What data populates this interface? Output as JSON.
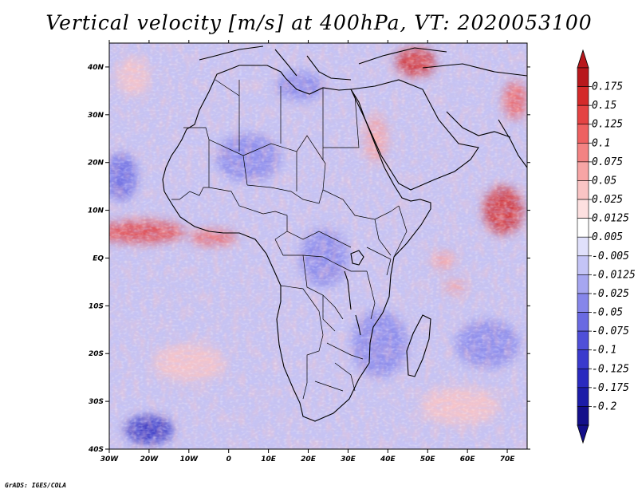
{
  "title": "Vertical velocity [m/s] at 400hPa, VT: 2020053100",
  "footer": "GrADS: IGES/COLA",
  "map": {
    "region": "Africa",
    "lon_range": [
      -30,
      75
    ],
    "lat_range": [
      -40,
      45
    ],
    "x_ticks": [
      "30W",
      "20W",
      "10W",
      "0",
      "10E",
      "20E",
      "30E",
      "40E",
      "50E",
      "60E",
      "70E"
    ],
    "y_ticks": [
      "40N",
      "30N",
      "20N",
      "10N",
      "EQ",
      "10S",
      "20S",
      "30S",
      "40S"
    ]
  },
  "colorbar": {
    "labels": [
      "0.175",
      "0.15",
      "0.125",
      "0.1",
      "0.075",
      "0.05",
      "0.025",
      "0.0125",
      "0.005",
      "-0.005",
      "-0.0125",
      "-0.025",
      "-0.05",
      "-0.075",
      "-0.1",
      "-0.125",
      "-0.175",
      "-0.2"
    ],
    "colors": [
      "#b8181c",
      "#d42a2a",
      "#e44343",
      "#ee6161",
      "#f38383",
      "#f7a5a5",
      "#fac4c4",
      "#fde0e0",
      "#ffffff",
      "#e0e0fb",
      "#c4c4f6",
      "#a6a6f0",
      "#8686ea",
      "#6a6ae2",
      "#4f4fd8",
      "#3a3acd",
      "#2a2abf",
      "#1c1ca8",
      "#140f8a"
    ]
  },
  "anomalies": [
    {
      "name": "itcz-atlantic",
      "lon": -22,
      "lat": 5.5,
      "rlon": 11,
      "rlat": 2.4,
      "v": 0.14
    },
    {
      "name": "gulf-guinea",
      "lon": -4,
      "lat": 4.3,
      "rlon": 6,
      "rlat": 1.6,
      "v": 0.12
    },
    {
      "name": "arabian-sea",
      "lon": 69,
      "lat": 10,
      "rlon": 5,
      "rlat": 5,
      "v": 0.15
    },
    {
      "name": "iran",
      "lon": 47,
      "lat": 41,
      "rlon": 5,
      "rlat": 3,
      "v": 0.16
    },
    {
      "name": "persian",
      "lon": 72,
      "lat": 33,
      "rlon": 3,
      "rlat": 4,
      "v": 0.12
    },
    {
      "name": "red-sea",
      "lon": 37,
      "lat": 25,
      "rlon": 3,
      "rlat": 5,
      "v": 0.05
    },
    {
      "name": "n-atlantic-red",
      "lon": -24,
      "lat": 38,
      "rlon": 4,
      "rlat": 4,
      "v": 0.04
    },
    {
      "name": "ind-ocean-1",
      "lon": 54,
      "lat": -0.5,
      "rlon": 3,
      "rlat": 2,
      "v": 0.06
    },
    {
      "name": "ind-ocean-2",
      "lon": 57,
      "lat": -6,
      "rlon": 3,
      "rlat": 1.5,
      "v": 0.06
    },
    {
      "name": "sw-blue",
      "lon": -20,
      "lat": -36,
      "rlon": 6,
      "rlat": 3,
      "v": -0.13
    },
    {
      "name": "nw-blue",
      "lon": -27,
      "lat": 17,
      "rlon": 4,
      "rlat": 5,
      "v": -0.06
    },
    {
      "name": "sahara-blue",
      "lon": 5,
      "lat": 21,
      "rlon": 8,
      "rlat": 5,
      "v": -0.04
    },
    {
      "name": "congo-blue",
      "lon": 24,
      "lat": 0,
      "rlon": 6,
      "rlat": 6,
      "v": -0.05
    },
    {
      "name": "east-afr-blue",
      "lon": 38,
      "lat": -18,
      "rlon": 7,
      "rlat": 7,
      "v": -0.05
    },
    {
      "name": "s-atl-red",
      "lon": -10,
      "lat": -22,
      "rlon": 9,
      "rlat": 4,
      "v": 0.04
    },
    {
      "name": "s-ind-red",
      "lon": 58,
      "lat": -31,
      "rlon": 10,
      "rlat": 4,
      "v": 0.04
    },
    {
      "name": "s-ind-blue",
      "lon": 65,
      "lat": -18,
      "rlon": 8,
      "rlat": 5,
      "v": -0.05
    },
    {
      "name": "medit",
      "lon": 18,
      "lat": 36,
      "rlon": 6,
      "rlat": 3,
      "v": -0.04
    }
  ]
}
